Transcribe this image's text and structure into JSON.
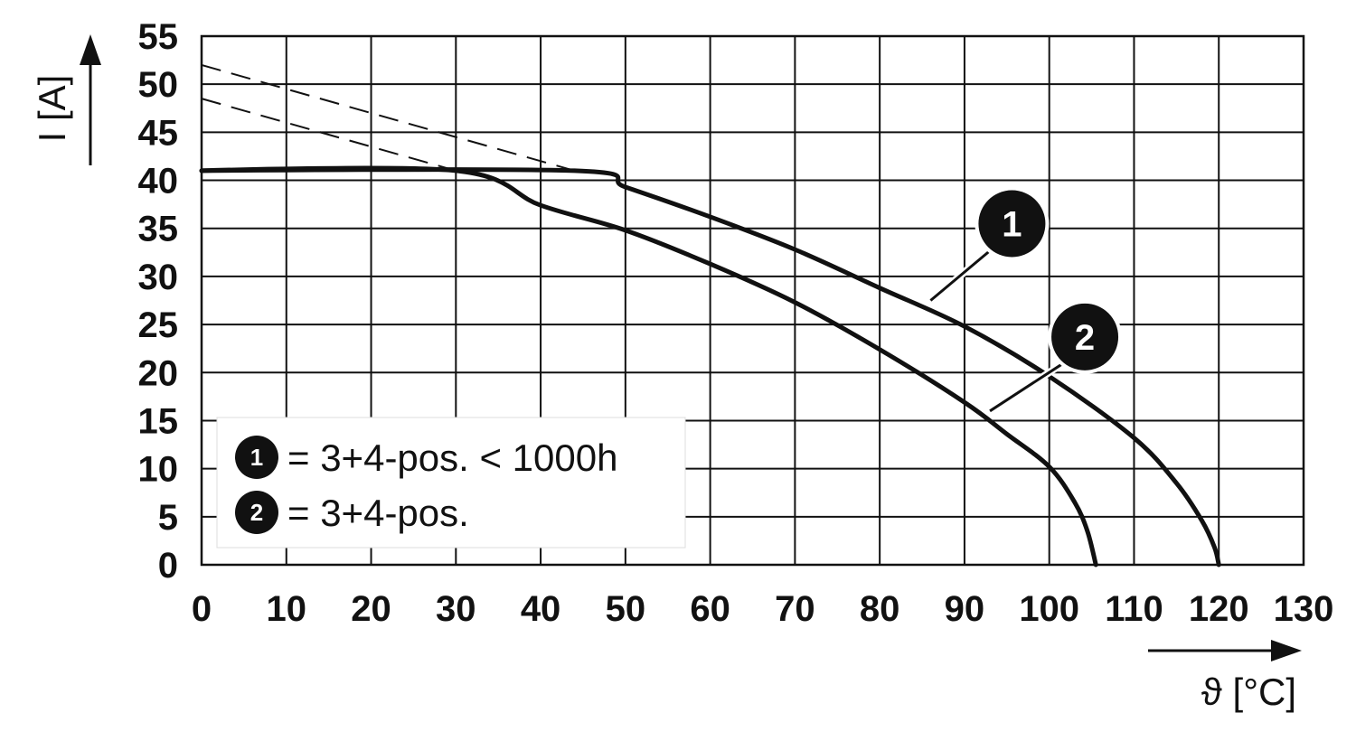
{
  "chart_data": {
    "type": "line",
    "xlabel": "ϑ [°C]",
    "ylabel": "I [A]",
    "xlim": [
      0,
      130
    ],
    "ylim": [
      0,
      55
    ],
    "x_ticks": [
      "0",
      "10",
      "20",
      "30",
      "40",
      "50",
      "60",
      "70",
      "80",
      "90",
      "100",
      "110",
      "120",
      "130"
    ],
    "y_ticks": [
      "0",
      "5",
      "10",
      "15",
      "20",
      "25",
      "30",
      "35",
      "40",
      "45",
      "50",
      "55"
    ],
    "grid": true,
    "series": [
      {
        "name": "3+4-pos. < 1000h",
        "marker": "1",
        "points": [
          [
            0,
            41
          ],
          [
            44,
            41
          ],
          [
            50,
            39.3
          ],
          [
            60,
            36.2
          ],
          [
            70,
            32.8
          ],
          [
            80,
            28.8
          ],
          [
            90,
            24.8
          ],
          [
            100,
            19.6
          ],
          [
            110,
            13.2
          ],
          [
            115,
            8.5
          ],
          [
            118,
            4.6
          ],
          [
            119.5,
            1.8
          ],
          [
            120,
            0
          ]
        ],
        "dashed_extension": [
          [
            0,
            52
          ],
          [
            44,
            41
          ]
        ]
      },
      {
        "name": "3+4-pos.",
        "marker": "2",
        "points": [
          [
            0,
            41
          ],
          [
            30,
            41
          ],
          [
            40,
            37.4
          ],
          [
            50,
            34.8
          ],
          [
            60,
            31.3
          ],
          [
            70,
            27.3
          ],
          [
            80,
            22.4
          ],
          [
            90,
            16.9
          ],
          [
            95,
            13.6
          ],
          [
            100,
            10.2
          ],
          [
            103,
            6.5
          ],
          [
            104.5,
            3.5
          ],
          [
            105.5,
            0
          ]
        ],
        "dashed_extension": [
          [
            0,
            48.5
          ],
          [
            30,
            41
          ]
        ]
      }
    ],
    "legend": {
      "placement": "bottom-left",
      "entries": [
        {
          "marker": "1",
          "text": "= 3+4-pos. < 1000h"
        },
        {
          "marker": "2",
          "text": "= 3+4-pos."
        }
      ]
    },
    "annotations": [
      {
        "marker": "1",
        "series_point": [
          86,
          27.5
        ]
      },
      {
        "marker": "2",
        "series_point": [
          93,
          16
        ]
      }
    ]
  }
}
